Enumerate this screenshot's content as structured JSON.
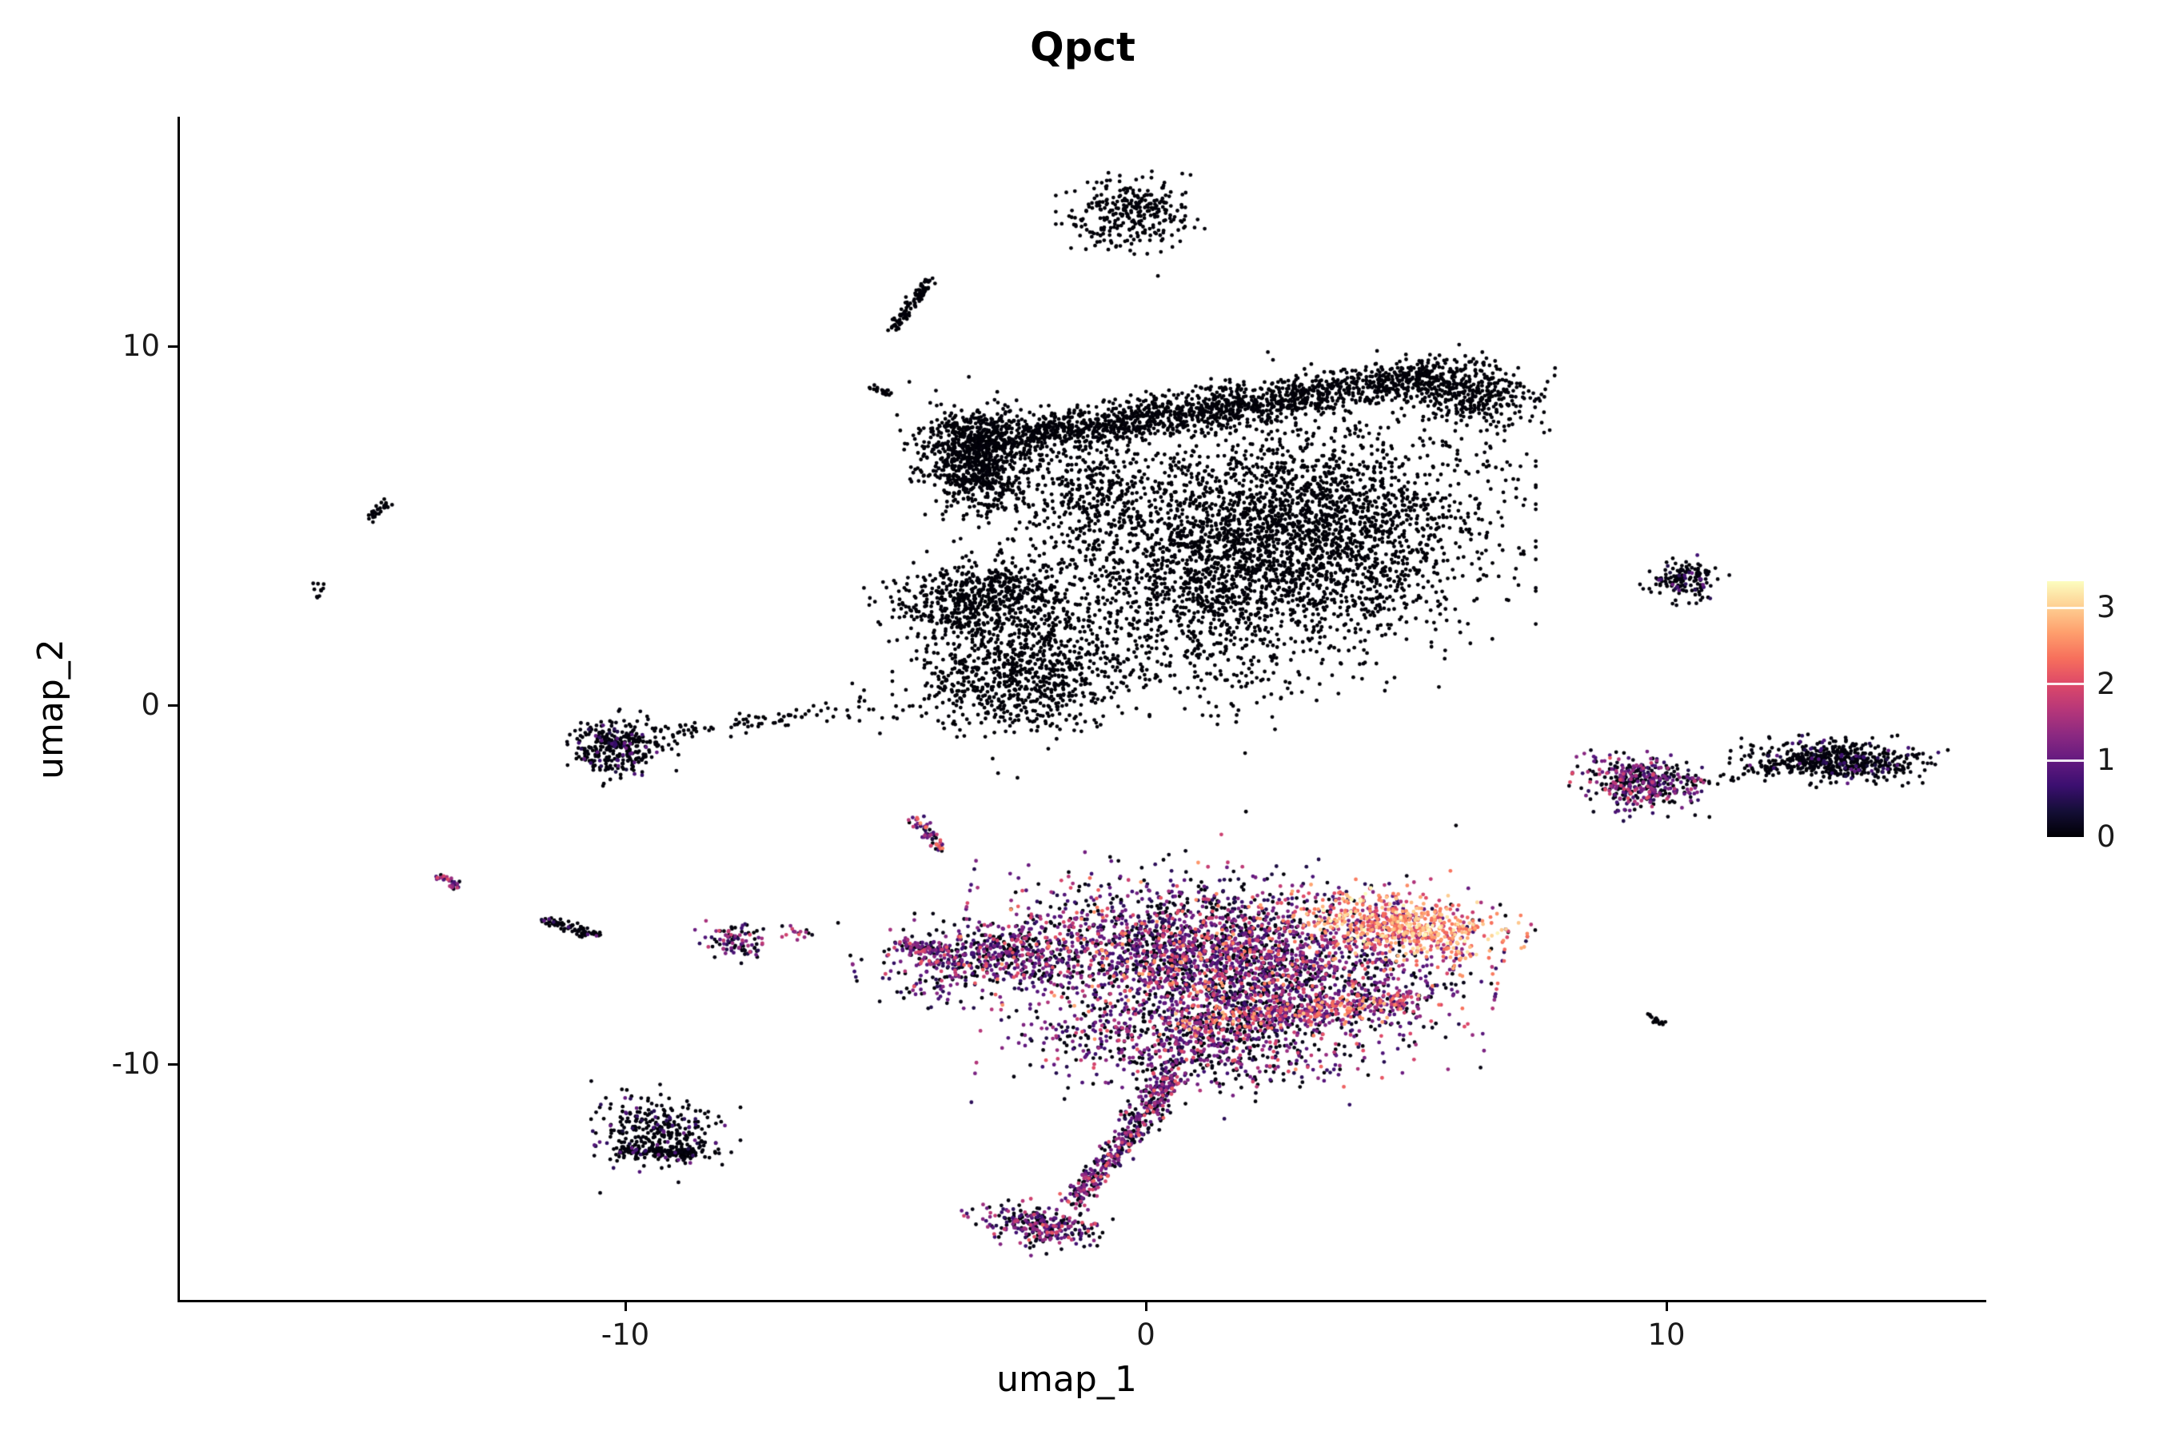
{
  "chart_data": {
    "type": "scatter",
    "title": "Qpct",
    "xlabel": "umap_1",
    "ylabel": "umap_2",
    "xlim": [
      -18.5,
      16.1
    ],
    "ylim": [
      -16.6,
      16.3
    ],
    "x_ticks": [
      -10,
      0,
      10
    ],
    "y_ticks": [
      10,
      0,
      -10
    ],
    "x_tick_labels": [
      "-10",
      "0",
      "10"
    ],
    "y_tick_labels": [
      "10",
      "0",
      "-10"
    ],
    "grid": false,
    "legend_position": "right",
    "colorbar": {
      "tick_labels": [
        "3",
        "2",
        "1",
        "0"
      ],
      "tick_values": [
        3,
        2,
        1,
        0
      ],
      "domain": [
        0,
        3.35
      ],
      "palette": "magma",
      "stops": [
        "#000004",
        "#140E36",
        "#3B0F70",
        "#641A80",
        "#8C2981",
        "#B73779",
        "#DE4968",
        "#F7705C",
        "#FE9F6D",
        "#FECF92",
        "#FCFDBF"
      ]
    },
    "expr_presets": {
      "zero": [
        [
          1.0,
          0.0,
          0.05
        ]
      ],
      "few_purple": [
        [
          0.9,
          0.0,
          0.08
        ],
        [
          0.1,
          0.3,
          1.1
        ]
      ],
      "mixed_low": [
        [
          0.45,
          0.0,
          0.15
        ],
        [
          0.35,
          0.4,
          1.3
        ],
        [
          0.2,
          1.2,
          2.1
        ]
      ],
      "mixed_mid": [
        [
          0.3,
          0.0,
          0.15
        ],
        [
          0.35,
          0.4,
          1.3
        ],
        [
          0.25,
          1.2,
          2.2
        ],
        [
          0.1,
          2.0,
          2.8
        ]
      ],
      "purple_mix": [
        [
          0.38,
          0.0,
          0.15
        ],
        [
          0.42,
          0.4,
          1.3
        ],
        [
          0.2,
          1.2,
          2.2
        ]
      ],
      "whale_body": [
        [
          0.34,
          0.0,
          0.15
        ],
        [
          0.36,
          0.35,
          1.2
        ],
        [
          0.2,
          1.0,
          2.0
        ],
        [
          0.1,
          1.8,
          2.7
        ]
      ],
      "belly": [
        [
          0.2,
          0.0,
          0.2
        ],
        [
          0.3,
          0.6,
          1.5
        ],
        [
          0.35,
          1.4,
          2.4
        ],
        [
          0.15,
          2.2,
          2.9
        ]
      ],
      "hot": [
        [
          0.1,
          0.4,
          1.2
        ],
        [
          0.35,
          1.5,
          2.4
        ],
        [
          0.4,
          2.2,
          3.0
        ],
        [
          0.15,
          2.7,
          3.3
        ]
      ]
    },
    "clusters": [
      {
        "name": "upper-band",
        "shape": "streak",
        "x1": -3.1,
        "y1": 7.35,
        "x2": 5.6,
        "y2": 9.15,
        "w": 0.28,
        "n": 1600,
        "expr": "zero"
      },
      {
        "name": "upper-band-right-blob",
        "shape": "blob",
        "x": 6.2,
        "y": 8.7,
        "rx": 0.7,
        "ry": 0.45,
        "rot": -20,
        "n": 380,
        "expr": "zero"
      },
      {
        "name": "upper-dense-knot",
        "shape": "blob",
        "x": -3.3,
        "y": 6.9,
        "rx": 0.5,
        "ry": 0.72,
        "rot": 8,
        "n": 850,
        "expr": "zero"
      },
      {
        "name": "upper-cloud-main",
        "shape": "blob",
        "x": 3.2,
        "y": 4.9,
        "rx": 1.65,
        "ry": 1.55,
        "rot": 0,
        "n": 2500,
        "expr": "zero"
      },
      {
        "name": "upper-cloud-left",
        "shape": "blob",
        "x": 0.7,
        "y": 3.3,
        "rx": 1.35,
        "ry": 1.3,
        "rot": 0,
        "n": 950,
        "expr": "zero"
      },
      {
        "name": "upper-cloud-neck",
        "shape": "blob",
        "x": -1.1,
        "y": 6.1,
        "rx": 1.0,
        "ry": 0.75,
        "rot": -20,
        "n": 420,
        "expr": "zero"
      },
      {
        "name": "left-arm",
        "shape": "blob",
        "x": -3.1,
        "y": 3.0,
        "rx": 0.85,
        "ry": 0.5,
        "rot": 12,
        "n": 680,
        "expr": "zero"
      },
      {
        "name": "arm-lower-blob",
        "shape": "blob",
        "x": -2.4,
        "y": 0.9,
        "rx": 0.95,
        "ry": 0.8,
        "rot": 0,
        "n": 800,
        "expr": "zero"
      },
      {
        "name": "below-cloud-sparse",
        "shape": "blob",
        "x": 1.6,
        "y": 0.9,
        "rx": 1.6,
        "ry": 0.55,
        "rot": 0,
        "n": 70,
        "expr": "zero"
      },
      {
        "name": "top-small-blob",
        "shape": "blob",
        "x": -0.3,
        "y": 13.7,
        "rx": 0.55,
        "ry": 0.48,
        "rot": 0,
        "n": 300,
        "expr": "zero"
      },
      {
        "name": "top-streak",
        "shape": "streak",
        "x1": -4.15,
        "y1": 11.9,
        "x2": -4.85,
        "y2": 10.45,
        "w": 0.07,
        "n": 95,
        "expr": "zero"
      },
      {
        "name": "top-dash",
        "shape": "streak",
        "x1": -5.3,
        "y1": 8.85,
        "x2": -4.9,
        "y2": 8.65,
        "w": 0.05,
        "n": 24,
        "expr": "zero"
      },
      {
        "name": "far-left-streak",
        "shape": "streak",
        "x1": -14.95,
        "y1": 5.15,
        "x2": -14.55,
        "y2": 5.65,
        "w": 0.05,
        "n": 28,
        "expr": "zero"
      },
      {
        "name": "far-left-dots",
        "shape": "blob",
        "x": -15.9,
        "y": 3.25,
        "rx": 0.1,
        "ry": 0.14,
        "rot": 0,
        "n": 10,
        "expr": "zero"
      },
      {
        "name": "left-round-blob",
        "shape": "blob",
        "x": -10.15,
        "y": -1.15,
        "rx": 0.45,
        "ry": 0.4,
        "rot": 0,
        "n": 320,
        "expr": "few_purple"
      },
      {
        "name": "left-trail",
        "shape": "streak",
        "x1": -9.45,
        "y1": -0.85,
        "x2": -6.0,
        "y2": -0.15,
        "w": 0.13,
        "n": 75,
        "expr": "zero"
      },
      {
        "name": "left-sparse",
        "shape": "blob",
        "x": -5.0,
        "y": -0.1,
        "rx": 0.9,
        "ry": 0.3,
        "rot": 0,
        "n": 35,
        "expr": "zero"
      },
      {
        "name": "right-mini-blob",
        "shape": "blob",
        "x": 10.35,
        "y": 3.5,
        "rx": 0.33,
        "ry": 0.28,
        "rot": 0,
        "n": 150,
        "expr": "few_purple"
      },
      {
        "name": "right-cluster",
        "shape": "blob",
        "x": 9.6,
        "y": -2.15,
        "rx": 0.55,
        "ry": 0.35,
        "rot": -10,
        "n": 430,
        "expr": "mixed_low"
      },
      {
        "name": "right-dotted-trail",
        "shape": "streak",
        "x1": 10.35,
        "y1": -2.3,
        "x2": 12.15,
        "y2": -1.7,
        "w": 0.06,
        "n": 30,
        "expr": "zero"
      },
      {
        "name": "right-bar",
        "shape": "blob",
        "x": 13.3,
        "y": -1.55,
        "rx": 0.8,
        "ry": 0.26,
        "rot": -4,
        "n": 540,
        "expr": "few_purple"
      },
      {
        "name": "mid-colored-streak",
        "shape": "streak",
        "x1": -4.45,
        "y1": -3.1,
        "x2": -3.95,
        "y2": -4.0,
        "w": 0.07,
        "n": 60,
        "expr": "mixed_mid"
      },
      {
        "name": "far-left-colored-dash",
        "shape": "streak",
        "x1": -13.6,
        "y1": -4.75,
        "x2": -13.2,
        "y2": -5.05,
        "w": 0.06,
        "n": 28,
        "expr": "mixed_mid"
      },
      {
        "name": "left-long-dash",
        "shape": "streak",
        "x1": -11.6,
        "y1": -5.95,
        "x2": -10.5,
        "y2": -6.4,
        "w": 0.07,
        "n": 75,
        "expr": "few_purple"
      },
      {
        "name": "small-left-cluster",
        "shape": "blob",
        "x": -7.9,
        "y": -6.6,
        "rx": 0.32,
        "ry": 0.22,
        "rot": 0,
        "n": 95,
        "expr": "mixed_low"
      },
      {
        "name": "left-dot-pair",
        "shape": "blob",
        "x": -6.7,
        "y": -6.3,
        "rx": 0.22,
        "ry": 0.13,
        "rot": 0,
        "n": 16,
        "expr": "mixed_low"
      },
      {
        "name": "bottom-left-cluster",
        "shape": "blob",
        "x": -9.4,
        "y": -11.9,
        "rx": 0.62,
        "ry": 0.5,
        "rot": 0,
        "n": 300,
        "expr": "few_purple"
      },
      {
        "name": "bottom-left-edge",
        "shape": "streak",
        "x1": -10.15,
        "y1": -12.4,
        "x2": -8.7,
        "y2": -12.45,
        "w": 0.09,
        "n": 150,
        "expr": "few_purple"
      },
      {
        "name": "whale-body",
        "shape": "blob",
        "x": 1.6,
        "y": -7.1,
        "rx": 2.0,
        "ry": 1.0,
        "rot": -8,
        "n": 3000,
        "expr": "whale_body"
      },
      {
        "name": "whale-nose-hot",
        "shape": "blob",
        "x": 5.0,
        "y": -6.15,
        "rx": 0.9,
        "ry": 0.42,
        "rot": -12,
        "n": 650,
        "expr": "hot"
      },
      {
        "name": "whale-left-taper",
        "shape": "blob",
        "x": -2.9,
        "y": -7.0,
        "rx": 1.05,
        "ry": 0.48,
        "rot": 10,
        "n": 560,
        "expr": "purple_mix"
      },
      {
        "name": "whale-left-tip",
        "shape": "streak",
        "x1": -4.8,
        "y1": -6.65,
        "x2": -3.8,
        "y2": -6.85,
        "w": 0.1,
        "n": 85,
        "expr": "purple_mix"
      },
      {
        "name": "whale-belly-streak",
        "shape": "streak",
        "x1": 0.6,
        "y1": -8.95,
        "x2": 5.2,
        "y2": -8.2,
        "w": 0.2,
        "n": 460,
        "expr": "belly"
      },
      {
        "name": "whale-lower-lobe",
        "shape": "blob",
        "x": 0.7,
        "y": -9.5,
        "rx": 1.5,
        "ry": 0.6,
        "rot": -5,
        "n": 650,
        "expr": "purple_mix"
      },
      {
        "name": "whale-tail-upper",
        "shape": "streak",
        "x1": 0.5,
        "y1": -10.2,
        "x2": -0.3,
        "y2": -12.0,
        "w": 0.17,
        "n": 260,
        "expr": "purple_mix"
      },
      {
        "name": "whale-tail-lower",
        "shape": "streak",
        "x1": -0.3,
        "y1": -12.0,
        "x2": -1.45,
        "y2": -13.85,
        "w": 0.15,
        "n": 220,
        "expr": "purple_mix"
      },
      {
        "name": "whale-foot",
        "shape": "blob",
        "x": -2.05,
        "y": -14.5,
        "rx": 0.62,
        "ry": 0.25,
        "rot": -10,
        "n": 280,
        "expr": "purple_mix"
      },
      {
        "name": "right-bottom-dash",
        "shape": "streak",
        "x1": 9.6,
        "y1": -8.6,
        "x2": 9.95,
        "y2": -8.9,
        "w": 0.05,
        "n": 18,
        "expr": "zero"
      },
      {
        "name": "stray-dots",
        "shape": "points",
        "pts": [
          [
            1.9,
            -3.0
          ],
          [
            0.35,
            -4.3
          ],
          [
            -0.6,
            -4.2
          ],
          [
            5.9,
            -3.35
          ],
          [
            -5.9,
            -6.05
          ],
          [
            -0.2,
            12.6
          ],
          [
            -0.65,
            12.9
          ],
          [
            6.95,
            -5.9
          ],
          [
            -2.5,
            -2.0
          ],
          [
            7.4,
            -6.3
          ]
        ],
        "expr": "zero"
      }
    ]
  }
}
